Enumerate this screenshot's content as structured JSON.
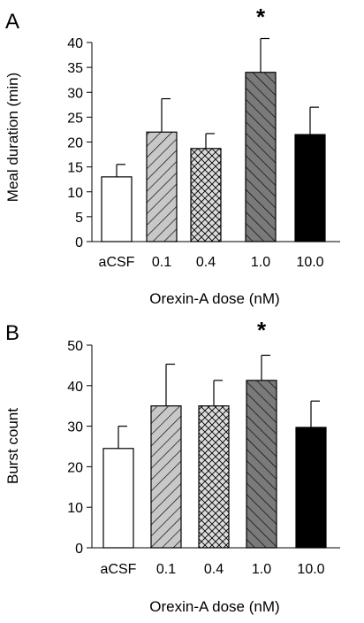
{
  "chart_data": [
    {
      "panel": "A",
      "type": "bar",
      "categories": [
        "aCSF",
        "0.1",
        "0.4",
        "1.0",
        "10.0"
      ],
      "values": [
        13,
        22,
        18.7,
        34,
        21.5
      ],
      "errors": [
        2.5,
        6.7,
        3.0,
        6.8,
        5.5
      ],
      "fills": [
        "white",
        "diag-light",
        "crosshatch",
        "diag-dark",
        "black"
      ],
      "significance": [
        "",
        "",
        "",
        "*",
        ""
      ],
      "xlabel": "Orexin-A dose (nM)",
      "ylabel": "Meal duration (min)",
      "ylim": [
        0,
        40
      ],
      "yticks": [
        0,
        5,
        10,
        15,
        20,
        25,
        30,
        35,
        40
      ],
      "grid": false
    },
    {
      "panel": "B",
      "type": "bar",
      "categories": [
        "aCSF",
        "0.1",
        "0.4",
        "1.0",
        "10.0"
      ],
      "values": [
        24.5,
        35,
        35,
        41.3,
        29.7
      ],
      "errors": [
        5.5,
        10.3,
        6.3,
        6.2,
        6.5
      ],
      "fills": [
        "white",
        "diag-light",
        "crosshatch",
        "diag-dark",
        "black"
      ],
      "significance": [
        "",
        "",
        "",
        "*",
        ""
      ],
      "xlabel": "Orexin-A dose (nM)",
      "ylabel": "Burst count",
      "ylim": [
        0,
        50
      ],
      "yticks": [
        0,
        10,
        20,
        30,
        40,
        50
      ],
      "grid": false
    }
  ],
  "colors": {
    "white": "#ffffff",
    "light_gray": "#c8c8c8",
    "dark_gray": "#7a7a7a",
    "black": "#000000"
  }
}
